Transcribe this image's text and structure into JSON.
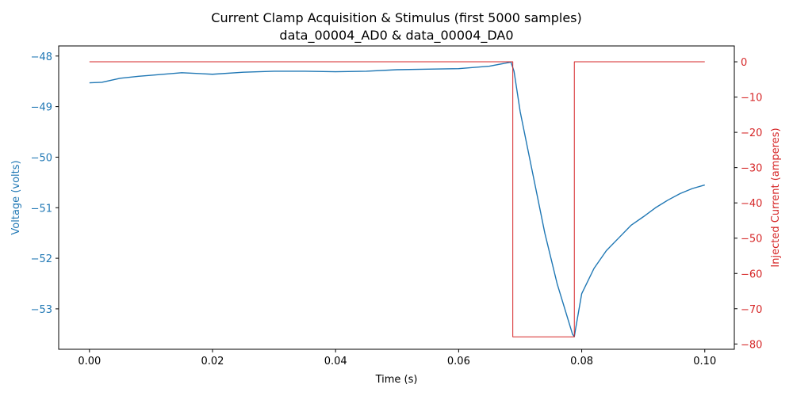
{
  "chart_data": {
    "type": "line",
    "title_line1": "Current Clamp Acquisition & Stimulus (first 5000 samples)",
    "title_line2": "data_00004_AD0 & data_00004_DA0",
    "xlabel": "Time (s)",
    "ylabel_left": "Voltage (volts)",
    "ylabel_right": "Injected Current (amperes)",
    "xlim": [
      -0.005,
      0.1048
    ],
    "ylim_left": [
      -53.8,
      -47.8
    ],
    "ylim_right": [
      -81.5,
      4.5
    ],
    "x_ticks": [
      0.0,
      0.02,
      0.04,
      0.06,
      0.08,
      0.1
    ],
    "x_tick_labels": [
      "0.00",
      "0.02",
      "0.04",
      "0.06",
      "0.08",
      "0.10"
    ],
    "left_ticks": [
      -48,
      -49,
      -50,
      -51,
      -52,
      -53
    ],
    "left_tick_labels": [
      "−48",
      "−49",
      "−50",
      "−51",
      "−52",
      "−53"
    ],
    "right_ticks": [
      0,
      -10,
      -20,
      -30,
      -40,
      -50,
      -60,
      -70,
      -80
    ],
    "right_tick_labels": [
      "0",
      "−10",
      "−20",
      "−30",
      "−40",
      "−50",
      "−60",
      "−70",
      "−80"
    ],
    "grid": false,
    "colors": {
      "voltage": "#1f77b4",
      "current": "#d62728"
    },
    "series": [
      {
        "axis": "left",
        "x": [
          0.0,
          0.002,
          0.005,
          0.008,
          0.01,
          0.015,
          0.02,
          0.025,
          0.03,
          0.035,
          0.04,
          0.045,
          0.05,
          0.055,
          0.06,
          0.065,
          0.0685,
          0.069,
          0.07,
          0.072,
          0.074,
          0.076,
          0.078,
          0.0785,
          0.0788,
          0.079,
          0.0795,
          0.08,
          0.082,
          0.084,
          0.086,
          0.088,
          0.09,
          0.092,
          0.094,
          0.096,
          0.098,
          0.1
        ],
        "y": [
          -48.53,
          -48.52,
          -48.44,
          -48.4,
          -48.38,
          -48.33,
          -48.36,
          -48.32,
          -48.3,
          -48.3,
          -48.31,
          -48.3,
          -48.27,
          -48.26,
          -48.25,
          -48.2,
          -48.12,
          -48.3,
          -49.1,
          -50.3,
          -51.5,
          -52.5,
          -53.3,
          -53.5,
          -53.55,
          -53.4,
          -53.05,
          -52.7,
          -52.2,
          -51.85,
          -51.6,
          -51.35,
          -51.18,
          -51.0,
          -50.85,
          -50.72,
          -50.62,
          -50.55
        ]
      },
      {
        "axis": "right",
        "x": [
          0.0,
          0.0688,
          0.0688,
          0.0788,
          0.0788,
          0.1
        ],
        "y": [
          0,
          0,
          -78,
          -78,
          0,
          0
        ]
      }
    ]
  }
}
